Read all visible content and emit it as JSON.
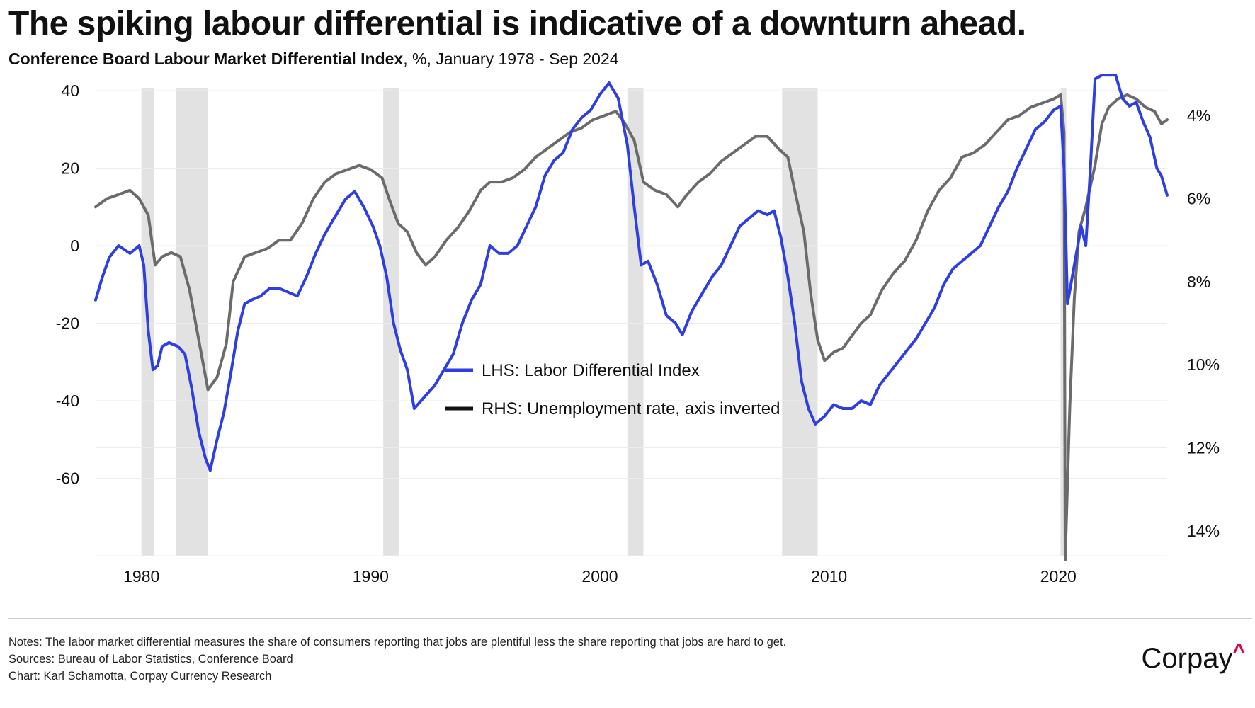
{
  "title": "The spiking labour differential is indicative of a downturn ahead.",
  "subtitle_lead": "Conference Board Labour Market Differential Index",
  "subtitle_rest": ", %, January 1978 - Sep 2024",
  "notes": [
    "Notes: The labor market differential measures the share of consumers reporting that jobs are plentiful less the share reporting that jobs are hard to get.",
    "Sources: Bureau of Labor Statistics, Conference Board",
    "Chart: Karl Schamotta, Corpay Currency Research"
  ],
  "logo": {
    "text": "Corpay",
    "mark": "^"
  },
  "colors": {
    "lhs": "#2e3ee0",
    "rhs": "#6b6b6b",
    "recession": "#e2e2e2",
    "grid": "#ececec",
    "accent": "#e4003b"
  },
  "chart_data": {
    "type": "line",
    "x_range": [
      1978.0,
      2024.75
    ],
    "xticks": [
      1980,
      1990,
      2000,
      2010,
      2020
    ],
    "left_axis": {
      "ylim": [
        -80,
        40
      ],
      "ticks": [
        40,
        20,
        0,
        -20,
        -40,
        -60
      ]
    },
    "right_axis": {
      "inverted": true,
      "ylim": [
        3.4,
        14.6
      ],
      "ticks": [
        4,
        6,
        8,
        10,
        12,
        14
      ],
      "tick_suffix": "%"
    },
    "legend": [
      {
        "label": "LHS: Labor Differential Index",
        "series": "lhs"
      },
      {
        "label": "RHS: Unemployment rate, axis inverted",
        "series": "rhs"
      }
    ],
    "recessions": [
      [
        1980.0,
        1980.55
      ],
      [
        1981.5,
        1982.9
      ],
      [
        1990.55,
        1991.25
      ],
      [
        2001.2,
        2001.9
      ],
      [
        2007.95,
        2009.5
      ],
      [
        2020.1,
        2020.35
      ]
    ],
    "series": [
      {
        "name": "LHS: Labor Differential Index",
        "axis": "left",
        "color": "#2e3ee0",
        "points": [
          [
            1978.0,
            -14
          ],
          [
            1978.3,
            -8
          ],
          [
            1978.6,
            -3
          ],
          [
            1979.0,
            0
          ],
          [
            1979.5,
            -2
          ],
          [
            1979.9,
            0
          ],
          [
            1980.1,
            -5
          ],
          [
            1980.3,
            -22
          ],
          [
            1980.5,
            -32
          ],
          [
            1980.7,
            -31
          ],
          [
            1980.9,
            -26
          ],
          [
            1981.2,
            -25
          ],
          [
            1981.6,
            -26
          ],
          [
            1981.9,
            -28
          ],
          [
            1982.2,
            -37
          ],
          [
            1982.5,
            -48
          ],
          [
            1982.8,
            -55
          ],
          [
            1983.0,
            -58
          ],
          [
            1983.3,
            -50
          ],
          [
            1983.6,
            -43
          ],
          [
            1983.9,
            -33
          ],
          [
            1984.2,
            -22
          ],
          [
            1984.5,
            -15
          ],
          [
            1984.8,
            -14
          ],
          [
            1985.2,
            -13
          ],
          [
            1985.6,
            -11
          ],
          [
            1986.0,
            -11
          ],
          [
            1986.4,
            -12
          ],
          [
            1986.8,
            -13
          ],
          [
            1987.2,
            -8
          ],
          [
            1987.6,
            -2
          ],
          [
            1988.0,
            3
          ],
          [
            1988.5,
            8
          ],
          [
            1988.9,
            12
          ],
          [
            1989.3,
            14
          ],
          [
            1989.7,
            10
          ],
          [
            1990.1,
            5
          ],
          [
            1990.4,
            0
          ],
          [
            1990.7,
            -8
          ],
          [
            1991.0,
            -20
          ],
          [
            1991.3,
            -27
          ],
          [
            1991.6,
            -32
          ],
          [
            1991.9,
            -42
          ],
          [
            1992.2,
            -40
          ],
          [
            1992.5,
            -38
          ],
          [
            1992.8,
            -36
          ],
          [
            1993.2,
            -32
          ],
          [
            1993.6,
            -28
          ],
          [
            1994.0,
            -20
          ],
          [
            1994.4,
            -14
          ],
          [
            1994.8,
            -10
          ],
          [
            1995.2,
            0
          ],
          [
            1995.6,
            -2
          ],
          [
            1996.0,
            -2
          ],
          [
            1996.4,
            0
          ],
          [
            1996.8,
            5
          ],
          [
            1997.2,
            10
          ],
          [
            1997.6,
            18
          ],
          [
            1998.0,
            22
          ],
          [
            1998.4,
            24
          ],
          [
            1998.8,
            30
          ],
          [
            1999.2,
            33
          ],
          [
            1999.6,
            35
          ],
          [
            2000.0,
            39
          ],
          [
            2000.4,
            42
          ],
          [
            2000.8,
            38
          ],
          [
            2001.2,
            26
          ],
          [
            2001.5,
            10
          ],
          [
            2001.8,
            -5
          ],
          [
            2002.1,
            -4
          ],
          [
            2002.5,
            -10
          ],
          [
            2002.9,
            -18
          ],
          [
            2003.3,
            -20
          ],
          [
            2003.6,
            -23
          ],
          [
            2004.0,
            -17
          ],
          [
            2004.5,
            -12
          ],
          [
            2004.9,
            -8
          ],
          [
            2005.3,
            -5
          ],
          [
            2005.7,
            0
          ],
          [
            2006.1,
            5
          ],
          [
            2006.5,
            7
          ],
          [
            2006.9,
            9
          ],
          [
            2007.3,
            8
          ],
          [
            2007.6,
            9
          ],
          [
            2007.9,
            2
          ],
          [
            2008.2,
            -8
          ],
          [
            2008.5,
            -20
          ],
          [
            2008.8,
            -35
          ],
          [
            2009.1,
            -42
          ],
          [
            2009.4,
            -46
          ],
          [
            2009.8,
            -44
          ],
          [
            2010.2,
            -41
          ],
          [
            2010.6,
            -42
          ],
          [
            2011.0,
            -42
          ],
          [
            2011.4,
            -40
          ],
          [
            2011.8,
            -41
          ],
          [
            2012.2,
            -36
          ],
          [
            2012.6,
            -33
          ],
          [
            2013.0,
            -30
          ],
          [
            2013.4,
            -27
          ],
          [
            2013.8,
            -24
          ],
          [
            2014.2,
            -20
          ],
          [
            2014.6,
            -16
          ],
          [
            2015.0,
            -10
          ],
          [
            2015.4,
            -6
          ],
          [
            2015.8,
            -4
          ],
          [
            2016.2,
            -2
          ],
          [
            2016.6,
            0
          ],
          [
            2017.0,
            5
          ],
          [
            2017.4,
            10
          ],
          [
            2017.8,
            14
          ],
          [
            2018.2,
            20
          ],
          [
            2018.6,
            25
          ],
          [
            2019.0,
            30
          ],
          [
            2019.4,
            32
          ],
          [
            2019.8,
            35
          ],
          [
            2020.1,
            36
          ],
          [
            2020.25,
            20
          ],
          [
            2020.4,
            -15
          ],
          [
            2020.7,
            -5
          ],
          [
            2021.0,
            5
          ],
          [
            2021.2,
            0
          ],
          [
            2021.4,
            20
          ],
          [
            2021.6,
            43
          ],
          [
            2021.9,
            44
          ],
          [
            2022.2,
            44
          ],
          [
            2022.5,
            44
          ],
          [
            2022.8,
            38
          ],
          [
            2023.1,
            36
          ],
          [
            2023.4,
            37
          ],
          [
            2023.7,
            32
          ],
          [
            2024.0,
            28
          ],
          [
            2024.3,
            20
          ],
          [
            2024.5,
            18
          ],
          [
            2024.75,
            13
          ]
        ]
      },
      {
        "name": "RHS: Unemployment rate, axis inverted",
        "axis": "right",
        "color": "#6b6b6b",
        "points": [
          [
            1978.0,
            6.2
          ],
          [
            1978.5,
            6.0
          ],
          [
            1979.0,
            5.9
          ],
          [
            1979.5,
            5.8
          ],
          [
            1979.9,
            6.0
          ],
          [
            1980.3,
            6.4
          ],
          [
            1980.6,
            7.6
          ],
          [
            1980.9,
            7.4
          ],
          [
            1981.3,
            7.3
          ],
          [
            1981.7,
            7.4
          ],
          [
            1982.1,
            8.2
          ],
          [
            1982.5,
            9.4
          ],
          [
            1982.9,
            10.6
          ],
          [
            1983.3,
            10.3
          ],
          [
            1983.7,
            9.5
          ],
          [
            1984.0,
            8.0
          ],
          [
            1984.5,
            7.4
          ],
          [
            1985.0,
            7.3
          ],
          [
            1985.5,
            7.2
          ],
          [
            1986.0,
            7.0
          ],
          [
            1986.5,
            7.0
          ],
          [
            1987.0,
            6.6
          ],
          [
            1987.5,
            6.0
          ],
          [
            1988.0,
            5.6
          ],
          [
            1988.5,
            5.4
          ],
          [
            1989.0,
            5.3
          ],
          [
            1989.5,
            5.2
          ],
          [
            1990.0,
            5.3
          ],
          [
            1990.5,
            5.5
          ],
          [
            1990.8,
            6.0
          ],
          [
            1991.2,
            6.6
          ],
          [
            1991.6,
            6.8
          ],
          [
            1992.0,
            7.3
          ],
          [
            1992.4,
            7.6
          ],
          [
            1992.8,
            7.4
          ],
          [
            1993.3,
            7.0
          ],
          [
            1993.8,
            6.7
          ],
          [
            1994.3,
            6.3
          ],
          [
            1994.8,
            5.8
          ],
          [
            1995.2,
            5.6
          ],
          [
            1995.7,
            5.6
          ],
          [
            1996.2,
            5.5
          ],
          [
            1996.7,
            5.3
          ],
          [
            1997.2,
            5.0
          ],
          [
            1997.7,
            4.8
          ],
          [
            1998.2,
            4.6
          ],
          [
            1998.7,
            4.4
          ],
          [
            1999.2,
            4.3
          ],
          [
            1999.7,
            4.1
          ],
          [
            2000.2,
            4.0
          ],
          [
            2000.7,
            3.9
          ],
          [
            2001.1,
            4.2
          ],
          [
            2001.5,
            4.6
          ],
          [
            2001.9,
            5.6
          ],
          [
            2002.4,
            5.8
          ],
          [
            2002.9,
            5.9
          ],
          [
            2003.4,
            6.2
          ],
          [
            2003.8,
            5.9
          ],
          [
            2004.3,
            5.6
          ],
          [
            2004.8,
            5.4
          ],
          [
            2005.3,
            5.1
          ],
          [
            2005.8,
            4.9
          ],
          [
            2006.3,
            4.7
          ],
          [
            2006.8,
            4.5
          ],
          [
            2007.3,
            4.5
          ],
          [
            2007.8,
            4.8
          ],
          [
            2008.2,
            5.0
          ],
          [
            2008.5,
            5.8
          ],
          [
            2008.9,
            6.8
          ],
          [
            2009.2,
            8.3
          ],
          [
            2009.5,
            9.4
          ],
          [
            2009.8,
            9.9
          ],
          [
            2010.2,
            9.7
          ],
          [
            2010.6,
            9.6
          ],
          [
            2011.0,
            9.3
          ],
          [
            2011.4,
            9.0
          ],
          [
            2011.8,
            8.8
          ],
          [
            2012.3,
            8.2
          ],
          [
            2012.8,
            7.8
          ],
          [
            2013.3,
            7.5
          ],
          [
            2013.8,
            7.0
          ],
          [
            2014.3,
            6.3
          ],
          [
            2014.8,
            5.8
          ],
          [
            2015.3,
            5.5
          ],
          [
            2015.8,
            5.0
          ],
          [
            2016.3,
            4.9
          ],
          [
            2016.8,
            4.7
          ],
          [
            2017.3,
            4.4
          ],
          [
            2017.8,
            4.1
          ],
          [
            2018.3,
            4.0
          ],
          [
            2018.8,
            3.8
          ],
          [
            2019.3,
            3.7
          ],
          [
            2019.8,
            3.6
          ],
          [
            2020.1,
            3.5
          ],
          [
            2020.25,
            4.4
          ],
          [
            2020.3,
            14.7
          ],
          [
            2020.5,
            11.0
          ],
          [
            2020.7,
            8.4
          ],
          [
            2020.9,
            6.8
          ],
          [
            2021.2,
            6.2
          ],
          [
            2021.6,
            5.2
          ],
          [
            2021.9,
            4.2
          ],
          [
            2022.2,
            3.8
          ],
          [
            2022.6,
            3.6
          ],
          [
            2023.0,
            3.5
          ],
          [
            2023.4,
            3.6
          ],
          [
            2023.8,
            3.8
          ],
          [
            2024.2,
            3.9
          ],
          [
            2024.5,
            4.2
          ],
          [
            2024.75,
            4.1
          ]
        ]
      }
    ]
  }
}
